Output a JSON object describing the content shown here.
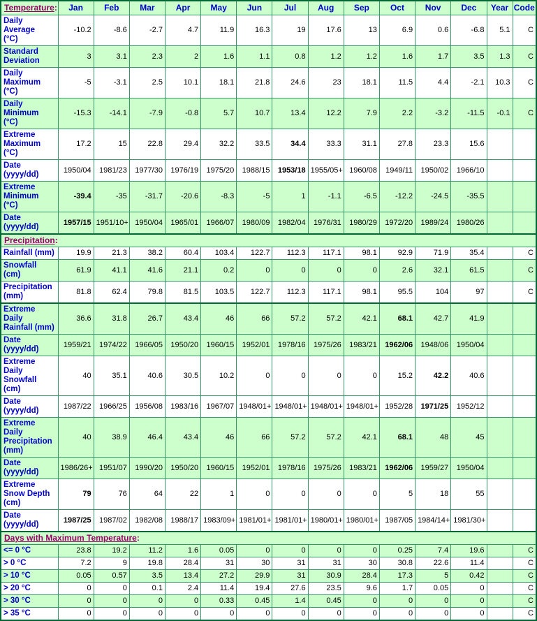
{
  "colors": {
    "cell_green": "#CCFFCC",
    "grid_border": "#339966",
    "outer_border": "#006633",
    "header_blue": "#0000CC",
    "section_title_purple": "#990066",
    "value_text": "#000000"
  },
  "chart_data": {
    "type": "table",
    "corner_label": "Temperature:",
    "month_headers": [
      "Jan",
      "Feb",
      "Mar",
      "Apr",
      "May",
      "Jun",
      "Jul",
      "Aug",
      "Sep",
      "Oct",
      "Nov",
      "Dec"
    ],
    "year_header": "Year",
    "code_header": "Code",
    "sections": [
      {
        "title": null,
        "thick_top": false,
        "rows": [
          {
            "label": "Daily Average\n(°C)",
            "values": [
              "-10.2",
              "-8.6",
              "-2.7",
              "4.7",
              "11.9",
              "16.3",
              "19",
              "17.6",
              "13",
              "6.9",
              "0.6",
              "-6.8"
            ],
            "year": "5.1",
            "code": "C",
            "green": false,
            "bold": []
          },
          {
            "label": "Standard\nDeviation",
            "values": [
              "3",
              "3.1",
              "2.3",
              "2",
              "1.6",
              "1.1",
              "0.8",
              "1.2",
              "1.2",
              "1.6",
              "1.7",
              "3.5"
            ],
            "year": "1.3",
            "code": "C",
            "green": true,
            "bold": []
          },
          {
            "label": "Daily\nMaximum\n(°C)",
            "values": [
              "-5",
              "-3.1",
              "2.5",
              "10.1",
              "18.1",
              "21.8",
              "24.6",
              "23",
              "18.1",
              "11.5",
              "4.4",
              "-2.1"
            ],
            "year": "10.3",
            "code": "C",
            "green": false,
            "bold": []
          },
          {
            "label": "Daily\nMinimum\n(°C)",
            "values": [
              "-15.3",
              "-14.1",
              "-7.9",
              "-0.8",
              "5.7",
              "10.7",
              "13.4",
              "12.2",
              "7.9",
              "2.2",
              "-3.2",
              "-11.5"
            ],
            "year": "-0.1",
            "code": "C",
            "green": true,
            "bold": []
          },
          {
            "label": "Extreme\nMaximum\n(°C)",
            "values": [
              "17.2",
              "15",
              "22.8",
              "29.4",
              "32.2",
              "33.5",
              "34.4",
              "33.3",
              "31.1",
              "27.8",
              "23.3",
              "15.6"
            ],
            "year": "",
            "code": "",
            "green": false,
            "bold": [
              6
            ]
          },
          {
            "label": "Date\n(yyyy/dd)",
            "values": [
              "1950/04",
              "1981/23",
              "1977/30",
              "1976/19",
              "1975/20",
              "1988/15",
              "1953/18",
              "1955/05+",
              "1960/08",
              "1949/11",
              "1950/02",
              "1966/10"
            ],
            "year": "",
            "code": "",
            "green": false,
            "bold": [
              6
            ]
          },
          {
            "label": "Extreme\nMinimum\n(°C)",
            "values": [
              "-39.4",
              "-35",
              "-31.7",
              "-20.6",
              "-8.3",
              "-5",
              "1",
              "-1.1",
              "-6.5",
              "-12.2",
              "-24.5",
              "-35.5"
            ],
            "year": "",
            "code": "",
            "green": true,
            "bold": [
              0
            ]
          },
          {
            "label": "Date\n(yyyy/dd)",
            "values": [
              "1957/15",
              "1951/10+",
              "1950/04",
              "1965/01",
              "1966/07",
              "1980/09",
              "1982/04",
              "1976/31",
              "1980/29",
              "1972/20",
              "1989/24",
              "1980/26"
            ],
            "year": "",
            "code": "",
            "green": true,
            "bold": [
              0
            ]
          }
        ]
      },
      {
        "title": "Precipitation:",
        "thick_top": true,
        "rows": [
          {
            "label": "Rainfall (mm)",
            "values": [
              "19.9",
              "21.3",
              "38.2",
              "60.4",
              "103.4",
              "122.7",
              "112.3",
              "117.1",
              "98.1",
              "92.9",
              "71.9",
              "35.4"
            ],
            "year": "",
            "code": "C",
            "green": false,
            "bold": []
          },
          {
            "label": "Snowfall\n(cm)",
            "values": [
              "61.9",
              "41.1",
              "41.6",
              "21.1",
              "0.2",
              "0",
              "0",
              "0",
              "0",
              "2.6",
              "32.1",
              "61.5"
            ],
            "year": "",
            "code": "C",
            "green": true,
            "bold": []
          },
          {
            "label": "Precipitation\n(mm)",
            "values": [
              "81.8",
              "62.4",
              "79.8",
              "81.5",
              "103.5",
              "122.7",
              "112.3",
              "117.1",
              "98.1",
              "95.5",
              "104",
              "97"
            ],
            "year": "",
            "code": "C",
            "green": false,
            "bold": []
          }
        ]
      },
      {
        "title": null,
        "thick_top": true,
        "rows": [
          {
            "label": "Extreme Daily\nRainfall (mm)",
            "values": [
              "36.6",
              "31.8",
              "26.7",
              "43.4",
              "46",
              "66",
              "57.2",
              "57.2",
              "42.1",
              "68.1",
              "42.7",
              "41.9"
            ],
            "year": "",
            "code": "",
            "green": true,
            "bold": [
              9
            ]
          },
          {
            "label": "Date\n(yyyy/dd)",
            "values": [
              "1959/21",
              "1974/22",
              "1966/05",
              "1950/20",
              "1960/15",
              "1952/01",
              "1978/16",
              "1975/26",
              "1983/21",
              "1962/06",
              "1948/06",
              "1950/04"
            ],
            "year": "",
            "code": "",
            "green": true,
            "bold": [
              9
            ]
          },
          {
            "label": "Extreme Daily\nSnowfall\n(cm)",
            "values": [
              "40",
              "35.1",
              "40.6",
              "30.5",
              "10.2",
              "0",
              "0",
              "0",
              "0",
              "15.2",
              "42.2",
              "40.6"
            ],
            "year": "",
            "code": "",
            "green": false,
            "bold": [
              10
            ]
          },
          {
            "label": "Date\n(yyyy/dd)",
            "values": [
              "1987/22",
              "1966/25",
              "1956/08",
              "1983/16",
              "1967/07",
              "1948/01+",
              "1948/01+",
              "1948/01+",
              "1948/01+",
              "1952/28",
              "1971/25",
              "1952/12"
            ],
            "year": "",
            "code": "",
            "green": false,
            "bold": [
              10
            ]
          },
          {
            "label": "Extreme Daily\nPrecipitation\n(mm)",
            "values": [
              "40",
              "38.9",
              "46.4",
              "43.4",
              "46",
              "66",
              "57.2",
              "57.2",
              "42.1",
              "68.1",
              "48",
              "45"
            ],
            "year": "",
            "code": "",
            "green": true,
            "bold": [
              9
            ]
          },
          {
            "label": "Date\n(yyyy/dd)",
            "values": [
              "1986/26+",
              "1951/07",
              "1990/20",
              "1950/20",
              "1960/15",
              "1952/01",
              "1978/16",
              "1975/26",
              "1983/21",
              "1962/06",
              "1959/27",
              "1950/04"
            ],
            "year": "",
            "code": "",
            "green": true,
            "bold": [
              9
            ]
          },
          {
            "label": "Extreme\nSnow Depth\n(cm)",
            "values": [
              "79",
              "76",
              "64",
              "22",
              "1",
              "0",
              "0",
              "0",
              "0",
              "5",
              "18",
              "55"
            ],
            "year": "",
            "code": "",
            "green": false,
            "bold": [
              0
            ]
          },
          {
            "label": "Date\n(yyyy/dd)",
            "values": [
              "1987/25",
              "1987/02",
              "1982/08",
              "1988/17",
              "1983/09+",
              "1981/01+",
              "1981/01+",
              "1980/01+",
              "1980/01+",
              "1987/05",
              "1984/14+",
              "1981/30+"
            ],
            "year": "",
            "code": "",
            "green": false,
            "bold": [
              0
            ]
          }
        ]
      },
      {
        "title": "Days with Maximum Temperature:",
        "thick_top": true,
        "rows": [
          {
            "label": "<= 0 °C",
            "values": [
              "23.8",
              "19.2",
              "11.2",
              "1.6",
              "0.05",
              "0",
              "0",
              "0",
              "0",
              "0.25",
              "7.4",
              "19.6"
            ],
            "year": "",
            "code": "C",
            "green": true,
            "bold": []
          },
          {
            "label": "> 0 °C",
            "values": [
              "7.2",
              "9",
              "19.8",
              "28.4",
              "31",
              "30",
              "31",
              "31",
              "30",
              "30.8",
              "22.6",
              "11.4"
            ],
            "year": "",
            "code": "C",
            "green": false,
            "bold": []
          },
          {
            "label": "> 10 °C",
            "values": [
              "0.05",
              "0.57",
              "3.5",
              "13.4",
              "27.2",
              "29.9",
              "31",
              "30.9",
              "28.4",
              "17.3",
              "5",
              "0.42"
            ],
            "year": "",
            "code": "C",
            "green": true,
            "bold": []
          },
          {
            "label": "> 20 °C",
            "values": [
              "0",
              "0",
              "0.1",
              "2.4",
              "11.4",
              "19.4",
              "27.6",
              "23.5",
              "9.6",
              "1.7",
              "0.05",
              "0"
            ],
            "year": "",
            "code": "C",
            "green": false,
            "bold": []
          },
          {
            "label": "> 30 °C",
            "values": [
              "0",
              "0",
              "0",
              "0",
              "0.33",
              "0.45",
              "1.4",
              "0.45",
              "0",
              "0",
              "0",
              "0"
            ],
            "year": "",
            "code": "C",
            "green": true,
            "bold": []
          },
          {
            "label": "> 35 °C",
            "values": [
              "0",
              "0",
              "0",
              "0",
              "0",
              "0",
              "0",
              "0",
              "0",
              "0",
              "0",
              "0"
            ],
            "year": "",
            "code": "C",
            "green": false,
            "bold": []
          }
        ]
      }
    ]
  }
}
